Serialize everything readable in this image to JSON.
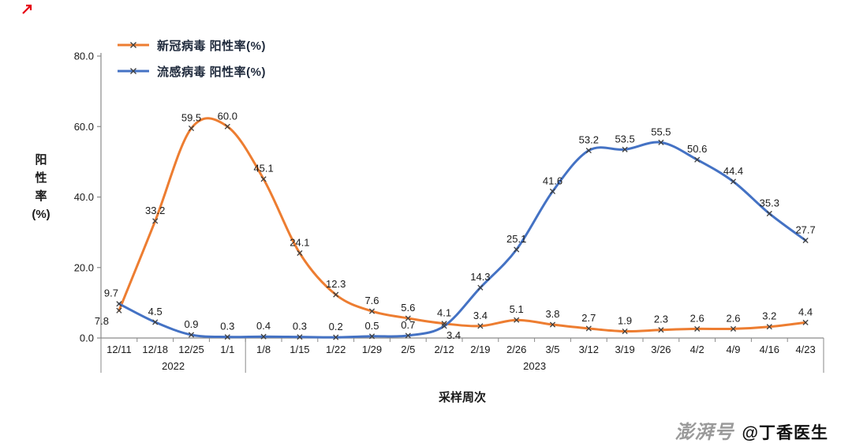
{
  "chart_data": {
    "type": "line",
    "title": "",
    "xlabel": "采样周次",
    "ylabel": "阳性率(%)",
    "ylabel_lines": [
      "阳",
      "性",
      "率",
      "(%)"
    ],
    "y_ticks": [
      0.0,
      20.0,
      40.0,
      60.0,
      80.0
    ],
    "ylim": [
      0,
      80
    ],
    "grid": false,
    "legend_position": "top-left",
    "categories": [
      "12/11",
      "12/18",
      "12/25",
      "1/1",
      "1/8",
      "1/15",
      "1/22",
      "1/29",
      "2/5",
      "2/12",
      "2/19",
      "2/26",
      "3/5",
      "3/12",
      "3/19",
      "3/26",
      "4/2",
      "4/9",
      "4/16",
      "4/23"
    ],
    "year_groups": [
      {
        "label": "2022",
        "from": 0,
        "to": 3
      },
      {
        "label": "2023",
        "from": 4,
        "to": 19
      }
    ],
    "series": [
      {
        "name": "新冠病毒 阳性率(%)",
        "color": "#ED7D31",
        "values": [
          7.8,
          33.2,
          59.5,
          60.0,
          45.1,
          24.1,
          12.3,
          7.6,
          5.6,
          4.1,
          3.4,
          5.1,
          3.8,
          2.7,
          1.9,
          2.3,
          2.6,
          2.6,
          3.2,
          4.4
        ]
      },
      {
        "name": "流感病毒 阳性率(%)",
        "color": "#4472C4",
        "values": [
          9.7,
          4.5,
          0.9,
          0.3,
          0.4,
          0.3,
          0.2,
          0.5,
          0.7,
          3.4,
          14.3,
          25.1,
          41.6,
          53.2,
          53.5,
          55.5,
          50.6,
          44.4,
          35.3,
          27.7
        ]
      }
    ]
  },
  "watermark": {
    "brand": "澎湃号",
    "account": "@丁香医生"
  },
  "colors": {
    "axis": "#8a8a8a",
    "text": "#1a1a1a",
    "marker": "#3f3f3f",
    "corner_mark": "#e60012"
  }
}
